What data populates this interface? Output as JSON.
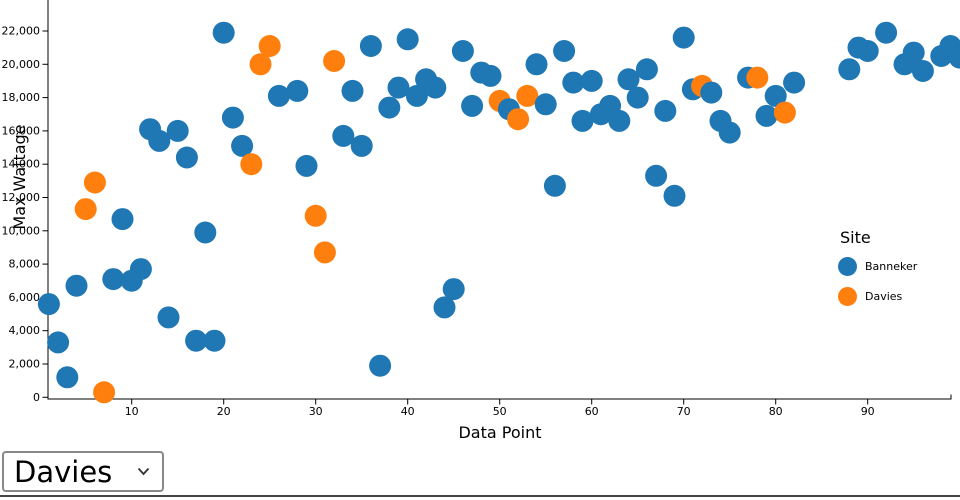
{
  "chart_data": {
    "type": "scatter",
    "title": "",
    "xlabel": "Data Point",
    "ylabel": "Max Wattage",
    "xlim": [
      0,
      100
    ],
    "ylim": [
      0,
      22000
    ],
    "x_ticks": [
      10,
      20,
      30,
      40,
      50,
      60,
      70,
      80,
      90
    ],
    "y_ticks": [
      0,
      2000,
      4000,
      6000,
      8000,
      10000,
      12000,
      14000,
      16000,
      18000,
      20000,
      22000
    ],
    "grid": false,
    "legend_title": "Site",
    "legend_position": "right",
    "series": [
      {
        "name": "Banneker",
        "color": "#1f77b4",
        "points": [
          [
            1,
            5600
          ],
          [
            2,
            3300
          ],
          [
            3,
            1200
          ],
          [
            4,
            6700
          ],
          [
            8,
            7100
          ],
          [
            9,
            10700
          ],
          [
            10,
            7000
          ],
          [
            11,
            7700
          ],
          [
            12,
            16100
          ],
          [
            13,
            15400
          ],
          [
            14,
            4800
          ],
          [
            15,
            16000
          ],
          [
            16,
            14400
          ],
          [
            17,
            3400
          ],
          [
            18,
            9900
          ],
          [
            19,
            3400
          ],
          [
            20,
            21900
          ],
          [
            21,
            16800
          ],
          [
            22,
            15100
          ],
          [
            26,
            18100
          ],
          [
            28,
            18400
          ],
          [
            29,
            13900
          ],
          [
            33,
            15700
          ],
          [
            34,
            18400
          ],
          [
            35,
            15100
          ],
          [
            36,
            21100
          ],
          [
            37,
            1900
          ],
          [
            38,
            17400
          ],
          [
            39,
            18600
          ],
          [
            40,
            21500
          ],
          [
            41,
            18100
          ],
          [
            42,
            19100
          ],
          [
            43,
            18600
          ],
          [
            44,
            5400
          ],
          [
            45,
            6500
          ],
          [
            46,
            20800
          ],
          [
            47,
            17500
          ],
          [
            48,
            19500
          ],
          [
            49,
            19300
          ],
          [
            51,
            17300
          ],
          [
            54,
            20000
          ],
          [
            55,
            17600
          ],
          [
            56,
            12700
          ],
          [
            57,
            20800
          ],
          [
            58,
            18900
          ],
          [
            59,
            16600
          ],
          [
            60,
            19000
          ],
          [
            61,
            17000
          ],
          [
            62,
            17500
          ],
          [
            63,
            16600
          ],
          [
            64,
            19100
          ],
          [
            65,
            18000
          ],
          [
            66,
            19700
          ],
          [
            67,
            13300
          ],
          [
            68,
            17200
          ],
          [
            69,
            12100
          ],
          [
            70,
            21600
          ],
          [
            71,
            18500
          ],
          [
            73,
            18300
          ],
          [
            74,
            16600
          ],
          [
            75,
            15900
          ],
          [
            77,
            19200
          ],
          [
            79,
            16900
          ],
          [
            80,
            18100
          ],
          [
            82,
            18900
          ],
          [
            88,
            19700
          ],
          [
            89,
            21000
          ],
          [
            90,
            20800
          ],
          [
            92,
            21900
          ],
          [
            94,
            20000
          ],
          [
            95,
            20700
          ],
          [
            96,
            19600
          ],
          [
            98,
            20500
          ],
          [
            99,
            21100
          ],
          [
            100,
            20400
          ]
        ]
      },
      {
        "name": "Davies",
        "color": "#ff7f0e",
        "points": [
          [
            5,
            11300
          ],
          [
            6,
            12900
          ],
          [
            7,
            300
          ],
          [
            23,
            14000
          ],
          [
            24,
            20000
          ],
          [
            25,
            21100
          ],
          [
            30,
            10900
          ],
          [
            31,
            8700
          ],
          [
            32,
            20200
          ],
          [
            50,
            17800
          ],
          [
            52,
            16700
          ],
          [
            53,
            18100
          ],
          [
            72,
            18700
          ],
          [
            78,
            19200
          ],
          [
            81,
            17100
          ]
        ]
      }
    ]
  },
  "controls": {
    "site_select_value": "Davies"
  }
}
